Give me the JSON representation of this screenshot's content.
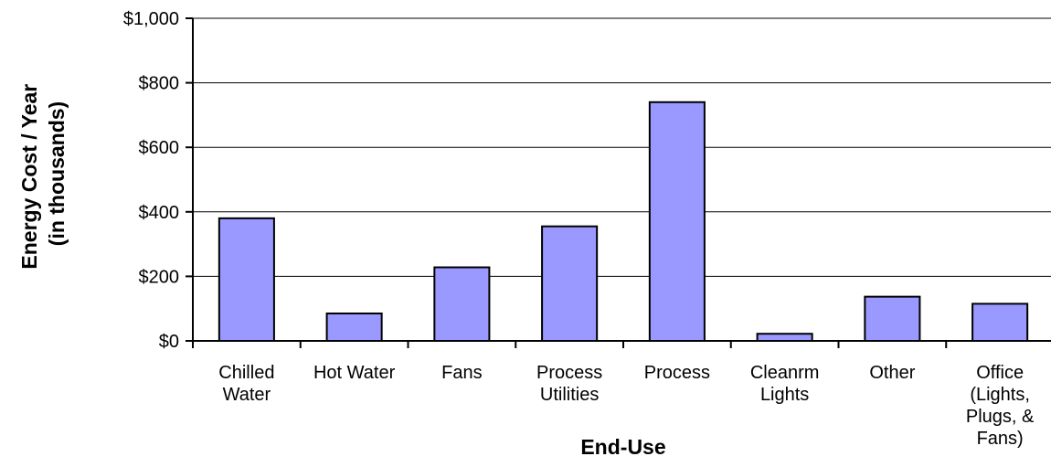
{
  "chart_data": {
    "type": "bar",
    "title": "",
    "xlabel": "End-Use",
    "ylabel_lines": [
      "Energy Cost / Year",
      "(in thousands)"
    ],
    "categories": [
      [
        "Chilled",
        "Water"
      ],
      [
        "Hot Water"
      ],
      [
        "Fans"
      ],
      [
        "Process",
        "Utilities"
      ],
      [
        "Process"
      ],
      [
        "Cleanrm",
        "Lights"
      ],
      [
        "Other"
      ],
      [
        "Office",
        "(Lights,",
        "Plugs, &",
        "Fans)"
      ]
    ],
    "values": [
      380,
      85,
      228,
      355,
      740,
      22,
      137,
      115
    ],
    "ylim": [
      0,
      1000
    ],
    "yticks": [
      0,
      200,
      400,
      600,
      800,
      1000
    ],
    "ytick_labels": [
      "$0",
      "$200",
      "$400",
      "$600",
      "$800",
      "$1,000"
    ],
    "grid": true,
    "legend": "none",
    "bar_color": "#9999ff",
    "bar_edge_color": "#000000"
  }
}
